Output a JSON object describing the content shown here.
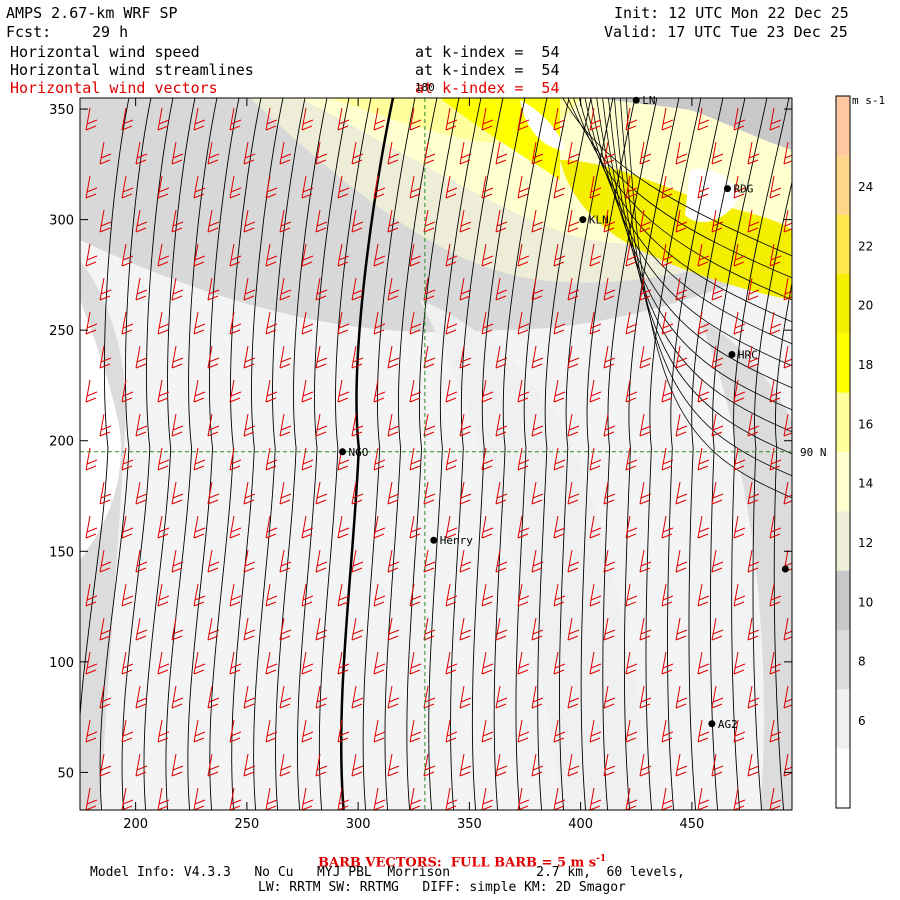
{
  "header": {
    "title": "AMPS 2.67-km WRF SP",
    "fcst_label": "Fcst:",
    "fcst_value": "29 h",
    "init": "Init: 12 UTC Mon 22 Dec 25",
    "valid": "Valid: 17 UTC Tue 23 Dec 25",
    "fields": [
      {
        "name": "Horizontal wind speed",
        "level": "at k-index =  54"
      },
      {
        "name": "Horizontal wind streamlines",
        "level": "at k-index =  54"
      },
      {
        "name": "Horizontal wind vectors",
        "level": "at k-index =  54"
      }
    ]
  },
  "map": {
    "x_ticks": [
      200,
      250,
      300,
      350,
      400,
      450
    ],
    "x_range": [
      175,
      495
    ],
    "y_ticks": [
      50,
      100,
      150,
      200,
      250,
      300,
      350
    ],
    "y_range": [
      33,
      355
    ],
    "meridian_label": "180",
    "meridian_x": 330,
    "parallel_label": "90 N",
    "parallel_y": 195,
    "stations": [
      {
        "name": "NGO",
        "x": 293,
        "y": 195
      },
      {
        "name": "Henry",
        "x": 334,
        "y": 155
      },
      {
        "name": "KLN",
        "x": 401,
        "y": 300
      },
      {
        "name": "RDG",
        "x": 466,
        "y": 314
      },
      {
        "name": "HRC",
        "x": 468,
        "y": 239
      },
      {
        "name": "AG2",
        "x": 459,
        "y": 72
      },
      {
        "name": "LN",
        "x": 425,
        "y": 354
      },
      {
        "name": "",
        "x": 492,
        "y": 142
      }
    ]
  },
  "colorbar": {
    "unit": "m s-1",
    "labels": [
      6,
      8,
      10,
      12,
      14,
      16,
      18,
      20,
      22,
      24
    ],
    "colors": [
      "#ffffff",
      "#f0f0f0",
      "#dcdcdc",
      "#c8c8c8",
      "#eeeed8",
      "#ffffd0",
      "#ffff9c",
      "#ffff00",
      "#f4ee00",
      "#ffe84c",
      "#ffd68a",
      "#ffc8a0"
    ]
  },
  "footer": {
    "barb_note": "BARB VECTORS:  FULL BARB = 5 m s",
    "barb_exp": "-1",
    "model_info": "Model Info: V4.3.3   No Cu   MYJ PBL  Morrison           2.7 km,  60 levels,",
    "physics": "LW: RRTM SW: RRTMG   DIFF: simple KM: 2D Smagor"
  }
}
